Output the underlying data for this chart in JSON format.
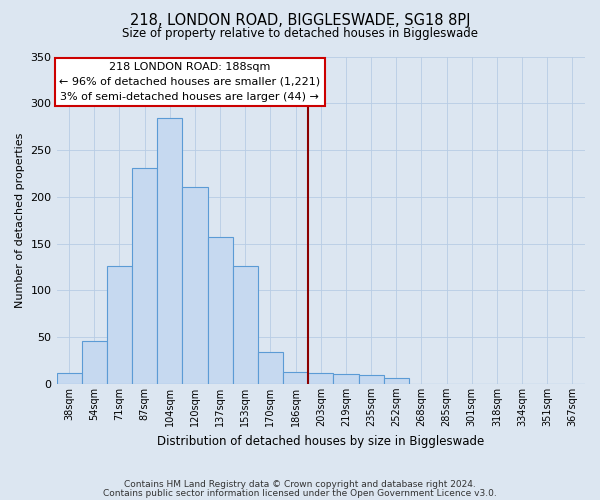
{
  "title": "218, LONDON ROAD, BIGGLESWADE, SG18 8PJ",
  "subtitle": "Size of property relative to detached houses in Biggleswade",
  "xlabel": "Distribution of detached houses by size in Biggleswade",
  "ylabel": "Number of detached properties",
  "bar_labels": [
    "38sqm",
    "54sqm",
    "71sqm",
    "87sqm",
    "104sqm",
    "120sqm",
    "137sqm",
    "153sqm",
    "170sqm",
    "186sqm",
    "203sqm",
    "219sqm",
    "235sqm",
    "252sqm",
    "268sqm",
    "285sqm",
    "301sqm",
    "318sqm",
    "334sqm",
    "351sqm",
    "367sqm"
  ],
  "bar_values": [
    12,
    46,
    126,
    231,
    284,
    210,
    157,
    126,
    34,
    13,
    12,
    11,
    10,
    6,
    0,
    0,
    0,
    0,
    0,
    0,
    0
  ],
  "bar_color": "#c6d9f0",
  "bar_edge_color": "#5b9bd5",
  "vline_x_idx": 9,
  "vline_color": "#8b0000",
  "annotation_title": "218 LONDON ROAD: 188sqm",
  "annotation_line1": "← 96% of detached houses are smaller (1,221)",
  "annotation_line2": "3% of semi-detached houses are larger (44) →",
  "annotation_box_color": "#ffffff",
  "annotation_box_edge": "#cc0000",
  "footer1": "Contains HM Land Registry data © Crown copyright and database right 2024.",
  "footer2": "Contains public sector information licensed under the Open Government Licence v3.0.",
  "bg_color": "#dce6f1",
  "ylim": [
    0,
    350
  ],
  "yticks": [
    0,
    50,
    100,
    150,
    200,
    250,
    300,
    350
  ]
}
